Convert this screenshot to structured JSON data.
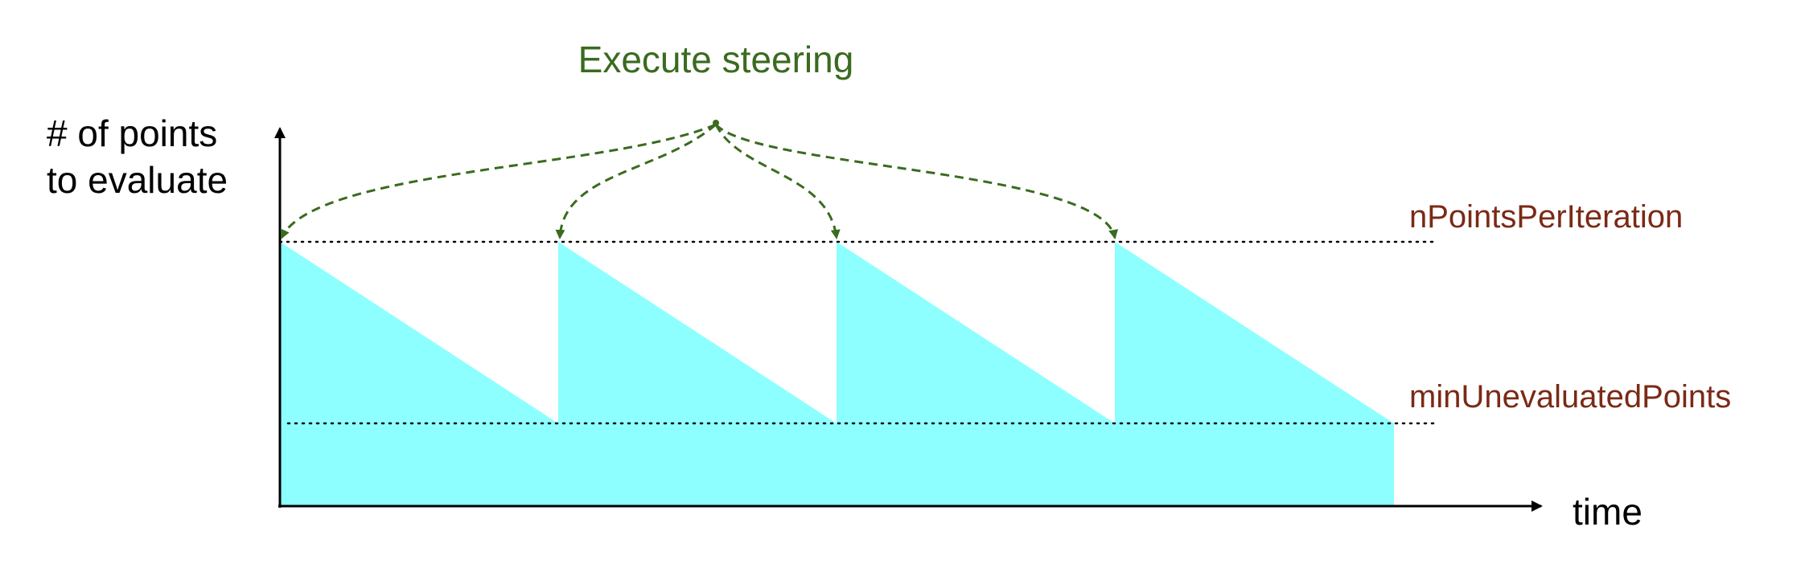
{
  "diagram": {
    "title": "Execute steering",
    "y_axis_label_line1": "# of points",
    "y_axis_label_line2": "to evaluate",
    "x_axis_label": "time",
    "upper_threshold_label": "nPointsPerIteration",
    "lower_threshold_label": "minUnevaluatedPoints",
    "cycles": 4,
    "colors": {
      "fill": "#8effff",
      "arrow": "#3a6b1f",
      "title": "#3a6b1f",
      "threshold_label": "#7a2a16",
      "axis": "#000000"
    }
  }
}
